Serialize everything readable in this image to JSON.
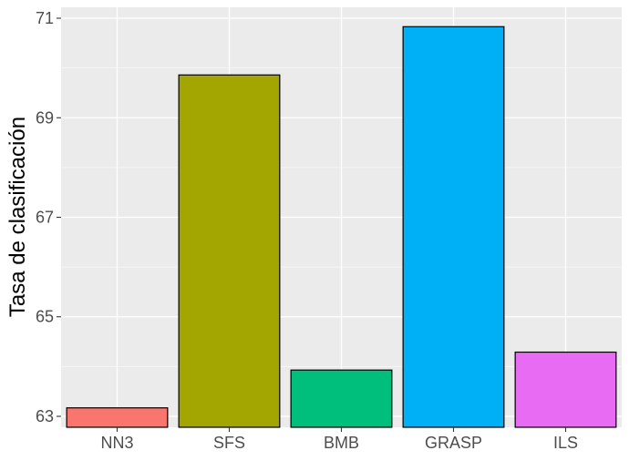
{
  "chart_data": {
    "type": "bar",
    "categories": [
      "NN3",
      "SFS",
      "BMB",
      "GRASP",
      "ILS"
    ],
    "values": [
      63.17,
      69.86,
      63.93,
      70.83,
      64.29
    ],
    "colors": [
      "#F8766D",
      "#A3A500",
      "#00BF7D",
      "#00B0F6",
      "#E76BF3"
    ],
    "title": "",
    "xlabel": "",
    "ylabel": "Tasa de clasificación",
    "ylim": [
      62.78,
      71.22
    ],
    "y_ticks": [
      63,
      65,
      67,
      69,
      71
    ],
    "y_tick_labels": [
      "63",
      "65",
      "67",
      "69",
      "71"
    ],
    "grid": true,
    "legend": "none"
  }
}
